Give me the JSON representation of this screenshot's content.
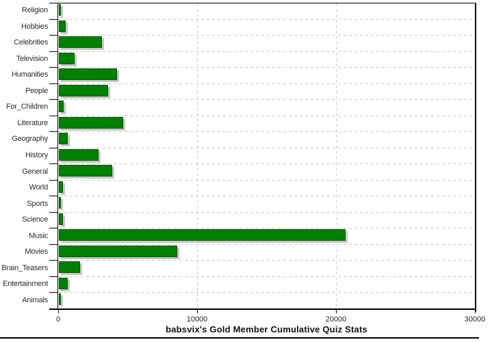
{
  "chart_data": {
    "type": "bar",
    "orientation": "horizontal",
    "title": "babsvix's Gold Member Cumulative Quiz Stats",
    "categories": [
      "Religion",
      "Hobbies",
      "Celebrities",
      "Television",
      "Humanities",
      "People",
      "For_Children",
      "Literature",
      "Geography",
      "History",
      "General",
      "World",
      "Sports",
      "Science",
      "Music",
      "Movies",
      "Brain_Teasers",
      "Entertainment",
      "Animals"
    ],
    "values": [
      110,
      450,
      3070,
      1090,
      4160,
      3520,
      310,
      4590,
      590,
      2830,
      3780,
      250,
      120,
      270,
      20600,
      8480,
      1480,
      600,
      60
    ],
    "xlabel": "",
    "ylabel": "",
    "xlim": [
      0,
      30000
    ],
    "x_ticks": [
      0,
      10000,
      20000,
      30000
    ],
    "x_tick_labels": [
      "0",
      "10000",
      "20000",
      "30000"
    ],
    "grid": "dashed",
    "legend": "none",
    "colors": {
      "bar_fill": "#008000",
      "bar_border": "#005c00",
      "bar_shadow": "#c6c6c6",
      "gridline": "#c9c9c9",
      "axis": "#000000",
      "label_text": "#2b2b2b",
      "title_text": "#111111",
      "background": "#ffffff"
    }
  }
}
